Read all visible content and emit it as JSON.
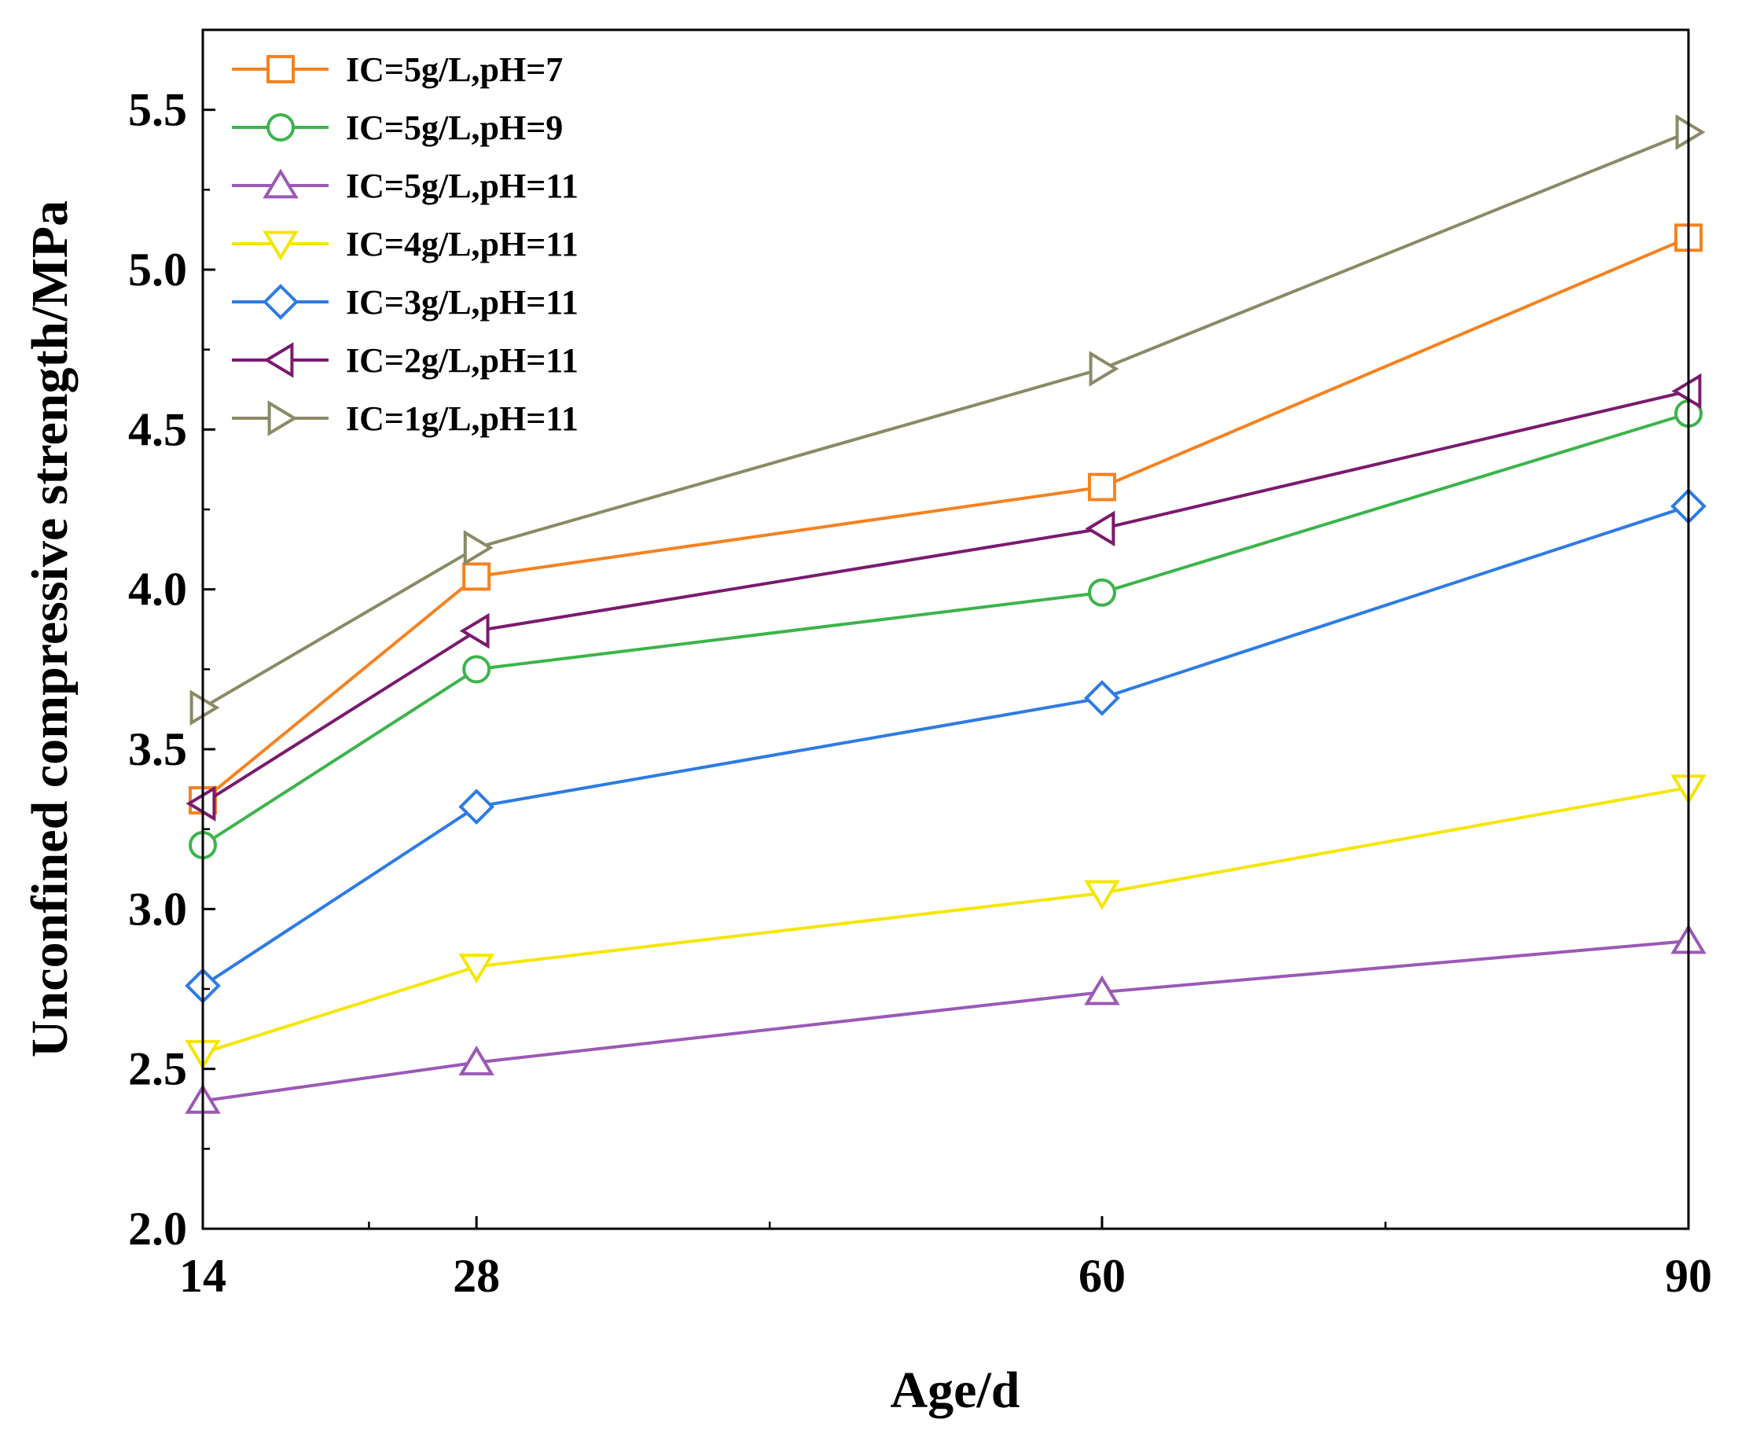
{
  "chart_data": {
    "type": "line",
    "title": "",
    "xlabel": "Age/d",
    "ylabel": "Unconfined compressive strength/MPa",
    "x": [
      14,
      28,
      60,
      90
    ],
    "xlim": [
      14,
      90
    ],
    "ylim": [
      2.0,
      5.75
    ],
    "xticks": [
      14,
      28,
      60,
      90
    ],
    "xtick_labels": [
      "14",
      "28",
      "60",
      "90"
    ],
    "yticks": [
      2.0,
      2.5,
      3.0,
      3.5,
      4.0,
      4.5,
      5.0,
      5.5
    ],
    "ytick_labels": [
      "2.0",
      "2.5",
      "3.0",
      "3.5",
      "4.0",
      "4.5",
      "5.0",
      "5.5"
    ],
    "grid": false,
    "legend_position": "top-left",
    "series": [
      {
        "name": "IC=5g/L,pH=7",
        "color": "#f58220",
        "marker": "square",
        "values": [
          3.34,
          4.04,
          4.32,
          5.1
        ]
      },
      {
        "name": "IC=5g/L,pH=9",
        "color": "#3cb44b",
        "marker": "circle",
        "values": [
          3.2,
          3.75,
          3.99,
          4.55
        ]
      },
      {
        "name": "IC=5g/L,pH=11",
        "color": "#9b59b6",
        "marker": "triangle-up",
        "values": [
          2.4,
          2.52,
          2.74,
          2.9
        ]
      },
      {
        "name": "IC=4g/L,pH=11",
        "color": "#f5e600",
        "marker": "triangle-down",
        "values": [
          2.55,
          2.82,
          3.05,
          3.38
        ]
      },
      {
        "name": "IC=3g/L,pH=11",
        "color": "#2d7be5",
        "marker": "diamond",
        "values": [
          2.76,
          3.32,
          3.66,
          4.26
        ]
      },
      {
        "name": "IC=2g/L,pH=11",
        "color": "#7a1a6e",
        "marker": "triangle-left",
        "values": [
          3.33,
          3.87,
          4.19,
          4.62
        ]
      },
      {
        "name": "IC=1g/L,pH=11",
        "color": "#8a8a66",
        "marker": "triangle-right",
        "values": [
          3.63,
          4.13,
          4.69,
          5.43
        ]
      }
    ]
  }
}
